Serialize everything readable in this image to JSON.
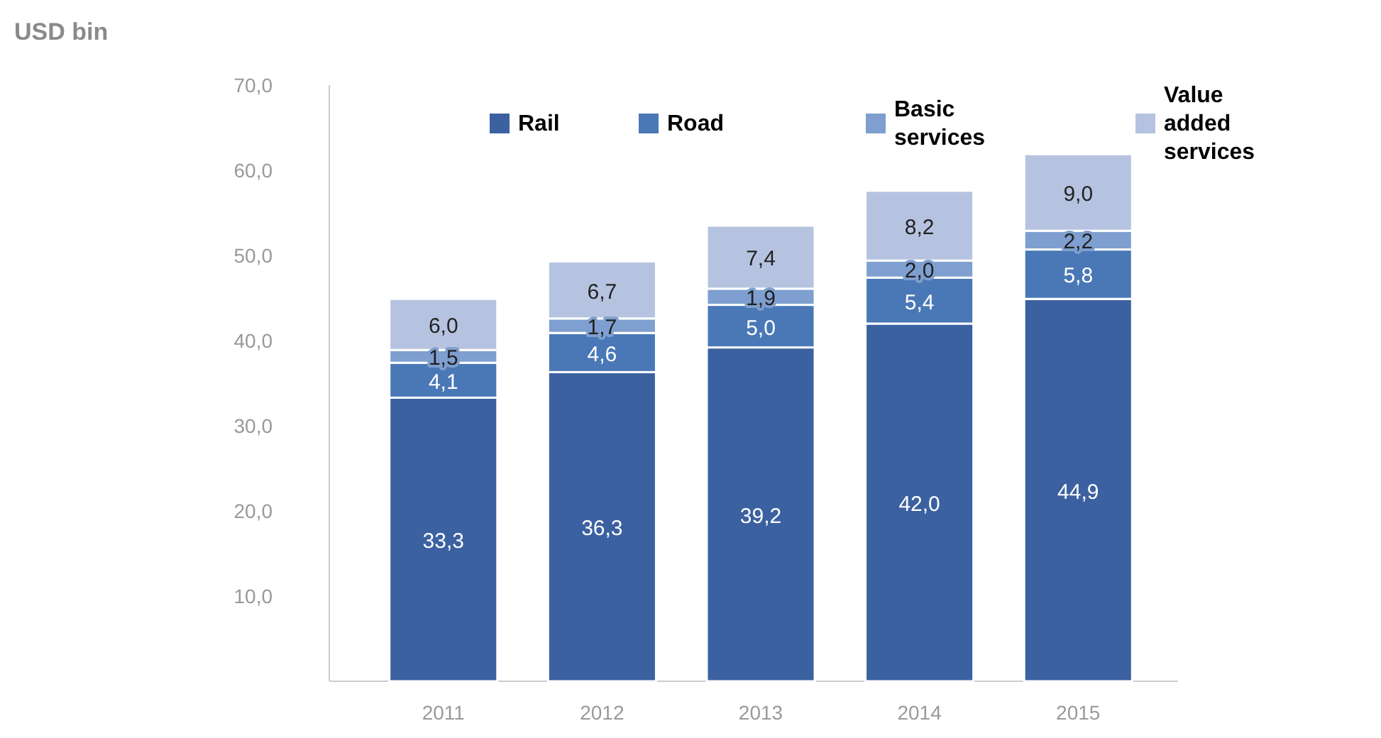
{
  "chart_data": {
    "type": "bar",
    "stacked": true,
    "annotations": [
      "USD bin"
    ],
    "categories": [
      "2011",
      "2012",
      "2013",
      "2014",
      "2015"
    ],
    "series": [
      {
        "name": "Rail",
        "color": "#3b61a0",
        "values": [
          33.3,
          36.3,
          39.2,
          42.0,
          44.9
        ],
        "value_labels": [
          "33,3",
          "36,3",
          "39,2",
          "42,0",
          "44,9"
        ]
      },
      {
        "name": "Road",
        "color": "#4a78b6",
        "values": [
          4.1,
          4.6,
          5.0,
          5.4,
          5.8
        ],
        "value_labels": [
          "4,1",
          "4,6",
          "5,0",
          "5,4",
          "5,8"
        ]
      },
      {
        "name": "Basic services",
        "color": "#7e9fcf",
        "values": [
          1.5,
          1.7,
          1.9,
          2.0,
          2.2
        ],
        "value_labels": [
          "1,5",
          "1,7",
          "1,9",
          "2,0",
          "2,2"
        ]
      },
      {
        "name": "Value added services",
        "color": "#b6c3e0",
        "values": [
          6.0,
          6.7,
          7.4,
          8.2,
          9.0
        ],
        "value_labels": [
          "6,0",
          "6,7",
          "7,4",
          "8,2",
          "9,0"
        ]
      }
    ],
    "ylim": [
      0,
      70
    ],
    "yticks": [
      {
        "value": 10,
        "label": "10,0"
      },
      {
        "value": 20,
        "label": "20,0"
      },
      {
        "value": 30,
        "label": "30,0"
      },
      {
        "value": 40,
        "label": "40,0"
      },
      {
        "value": 50,
        "label": "50,0"
      },
      {
        "value": 60,
        "label": "60,0"
      },
      {
        "value": 70,
        "label": "70,0"
      }
    ],
    "grid": false,
    "legend": "top"
  }
}
